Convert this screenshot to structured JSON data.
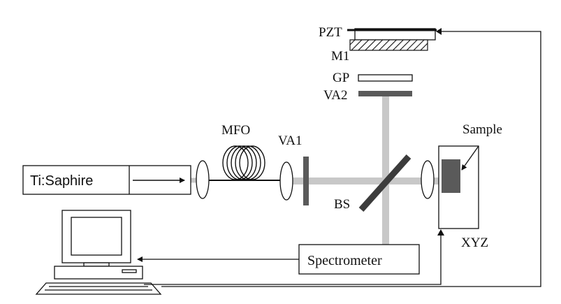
{
  "colors": {
    "beam": "#c8c8c8",
    "dark_component": "#5a5a5a",
    "line": "#111111",
    "background": "#ffffff"
  },
  "labels": {
    "pzt": "PZT",
    "m1": "M1",
    "gp": "GP",
    "va2": "VA2",
    "va1": "VA1",
    "mfo": "MFO",
    "bs": "BS",
    "sample": "Sample",
    "xyz": "XYZ",
    "laser": "Ti:Saphire",
    "spectrometer": "Spectrometer"
  },
  "icons": {
    "computer": "computer-icon",
    "fiber": "fiber-coil-icon"
  }
}
